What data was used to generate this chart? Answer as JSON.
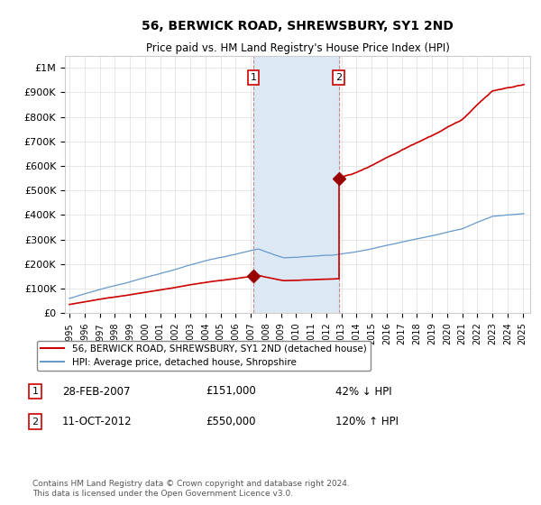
{
  "title": "56, BERWICK ROAD, SHREWSBURY, SY1 2ND",
  "subtitle": "Price paid vs. HM Land Registry's House Price Index (HPI)",
  "footer": "Contains HM Land Registry data © Crown copyright and database right 2024.\nThis data is licensed under the Open Government Licence v3.0.",
  "legend_line1": "56, BERWICK ROAD, SHREWSBURY, SY1 2ND (detached house)",
  "legend_line2": "HPI: Average price, detached house, Shropshire",
  "transaction1_label": "1",
  "transaction1_date": "28-FEB-2007",
  "transaction1_price": 151000,
  "transaction1_pct": "42% ↓ HPI",
  "transaction2_label": "2",
  "transaction2_date": "11-OCT-2012",
  "transaction2_price": 550000,
  "transaction2_pct": "120% ↑ HPI",
  "shading_color": "#dce9f5",
  "red_line_color": "#cc0000",
  "blue_line_color": "#6699cc",
  "transaction_dot_color": "#990000",
  "marker_box_color": "#cc0000",
  "background_color": "#ffffff",
  "ylim_max": 1000000,
  "xlim_start": 1994.7,
  "xlim_end": 2025.5
}
